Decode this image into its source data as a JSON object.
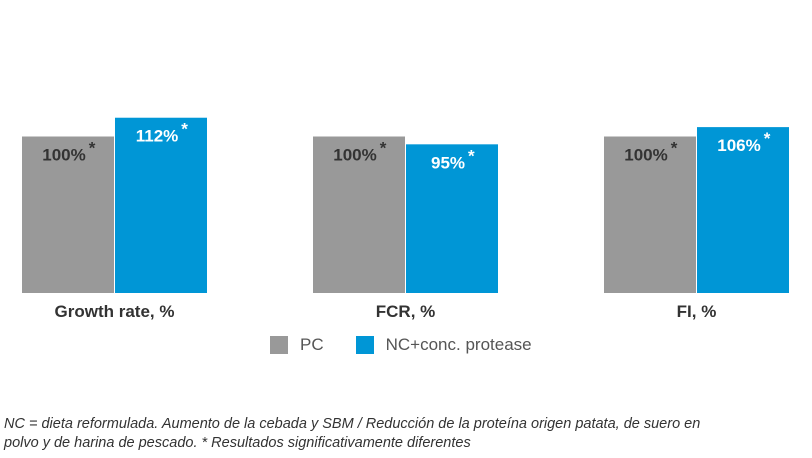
{
  "chart_data": {
    "type": "bar",
    "categories": [
      "Growth rate, %",
      "FCR, %",
      "FI, %"
    ],
    "series": [
      {
        "name": "PC",
        "color": "#999999",
        "values": [
          100,
          100,
          100
        ],
        "labels": [
          "100%",
          "100%",
          "100%"
        ]
      },
      {
        "name": "NC+conc. protease",
        "color": "#0096d6",
        "values": [
          112,
          95,
          106
        ],
        "labels": [
          "112%",
          "95%",
          "106%"
        ]
      }
    ],
    "significance_marker": "*",
    "grid": false,
    "legend_position": "bottom"
  },
  "legend": [
    {
      "label": "PC",
      "color": "#999999"
    },
    {
      "label": "NC+conc. protease",
      "color": "#0096d6"
    }
  ],
  "footnote": {
    "line1": "NC = dieta reformulada. Aumento de la cebada y SBM / Reducción de la proteína origen patata, de suero en",
    "line2": "polvo y de harina de pescado. * Resultados significativamente diferentes"
  }
}
